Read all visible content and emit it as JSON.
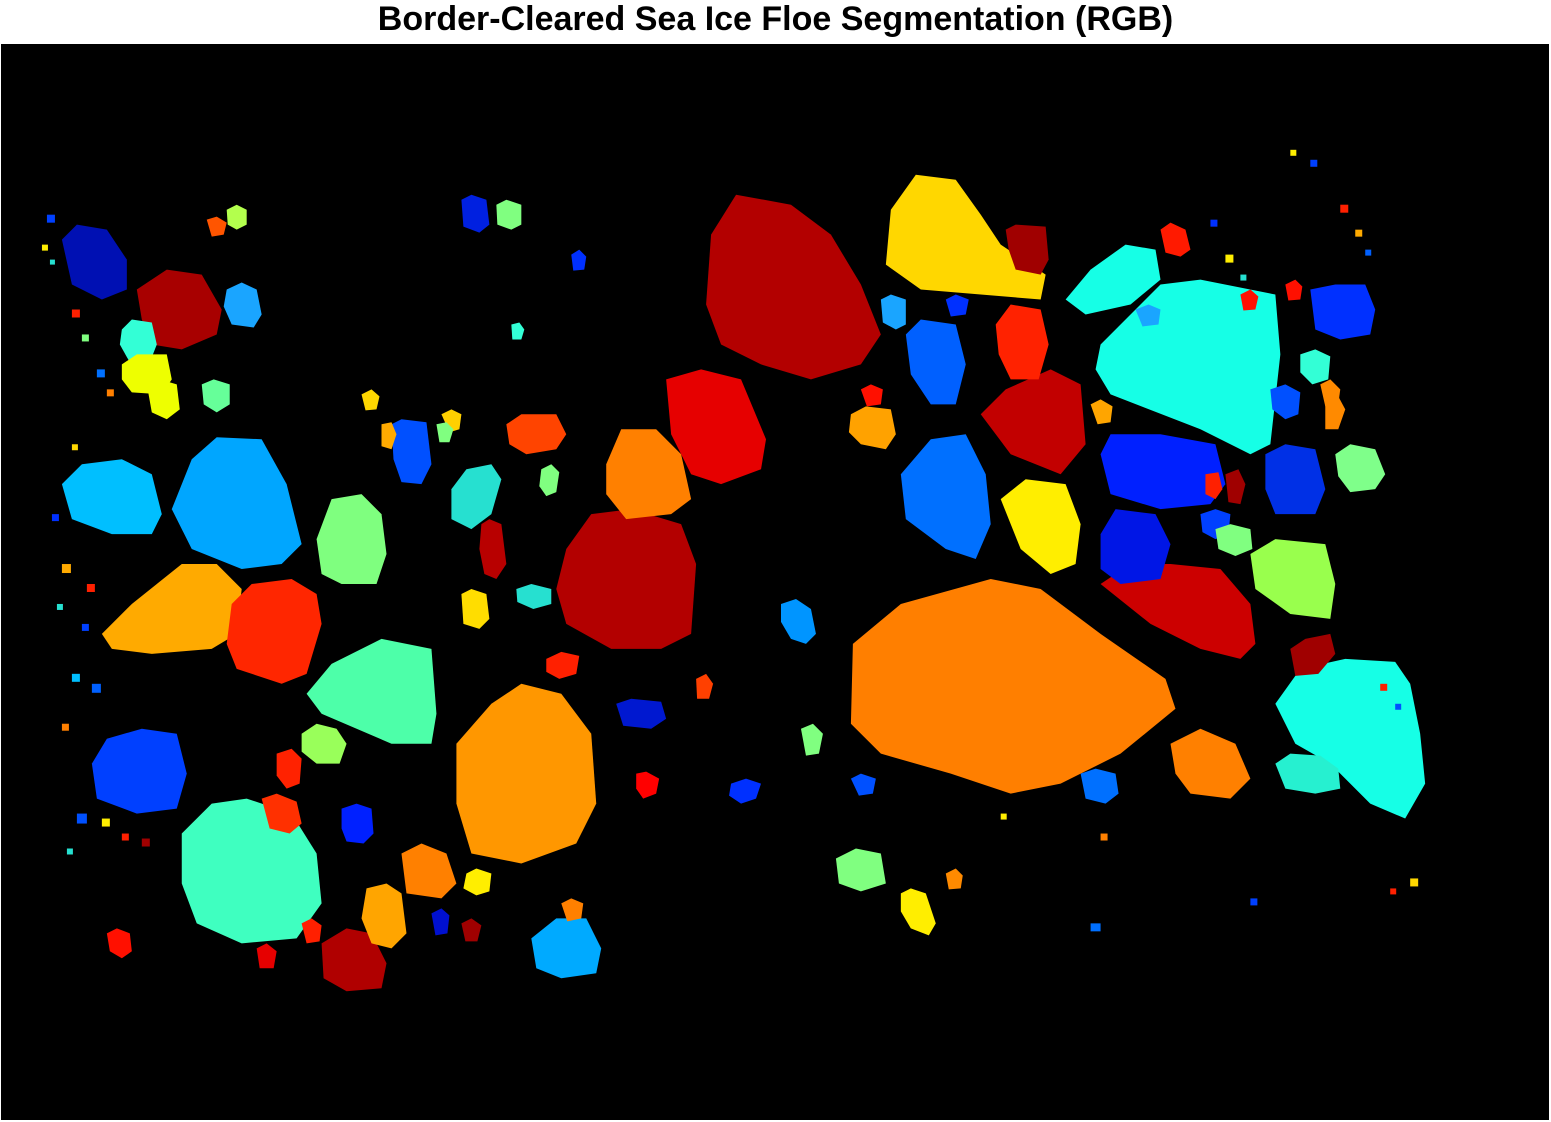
{
  "figure": {
    "title": "Border-Cleared Sea Ice Floe Segmentation (RGB)"
  },
  "image": {
    "description_colors": {
      "background": "#000000"
    }
  }
}
